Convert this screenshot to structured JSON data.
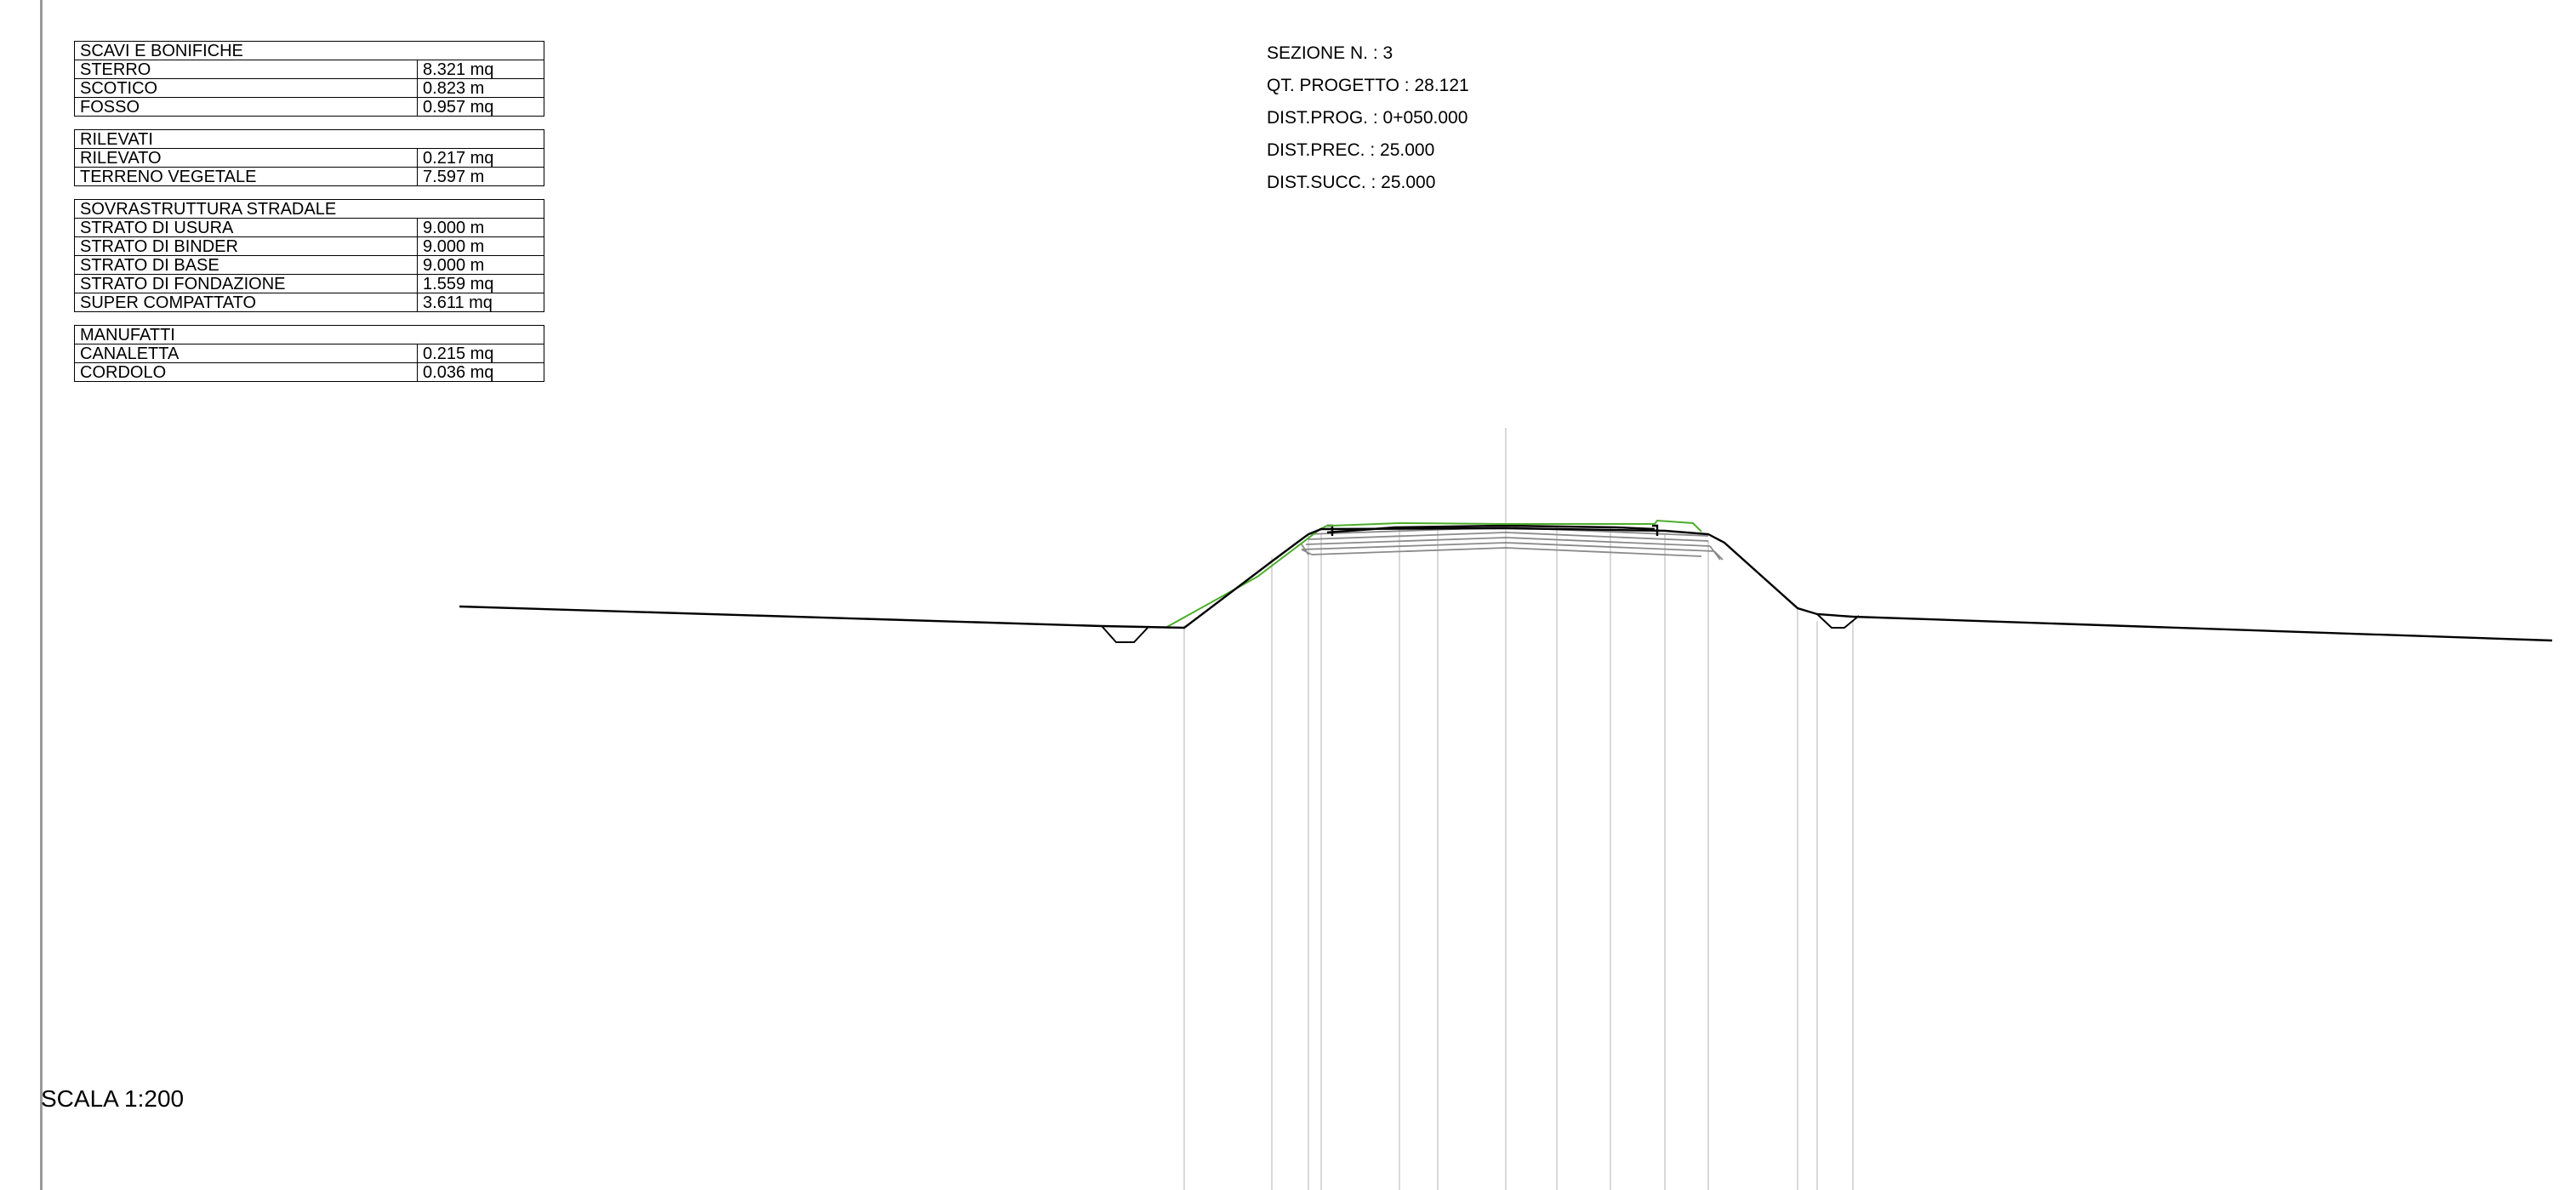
{
  "quantity_tables": {
    "scavi": {
      "title": "SCAVI E BONIFICHE",
      "rows": [
        {
          "label": "STERRO",
          "value": "8.321 mq"
        },
        {
          "label": "SCOTICO",
          "value": "0.823 m"
        },
        {
          "label": "FOSSO",
          "value": "0.957 mq"
        }
      ]
    },
    "rilevati": {
      "title": "RILEVATI",
      "rows": [
        {
          "label": "RILEVATO",
          "value": "0.217 mq"
        },
        {
          "label": "TERRENO VEGETALE",
          "value": "7.597 m"
        }
      ]
    },
    "sovrastruttura": {
      "title": "SOVRASTRUTTURA STRADALE",
      "rows": [
        {
          "label": "STRATO DI USURA",
          "value": "9.000 m"
        },
        {
          "label": "STRATO DI BINDER",
          "value": "9.000 m"
        },
        {
          "label": "STRATO DI BASE",
          "value": "9.000 m"
        },
        {
          "label": "STRATO DI FONDAZIONE",
          "value": "1.559 mq"
        },
        {
          "label": "SUPER COMPATTATO",
          "value": "3.611 mq"
        }
      ]
    },
    "manufatti": {
      "title": "MANUFATTI",
      "rows": [
        {
          "label": "CANALETTA",
          "value": "0.215 mq"
        },
        {
          "label": "CORDOLO",
          "value": "0.036 mq"
        }
      ]
    }
  },
  "section_info": {
    "sezione": "SEZIONE N. : 3",
    "qt_progetto": "QT. PROGETTO : 28.121",
    "dist_prog": "DIST.PROG. : 0+050.000",
    "dist_prec": "DIST.PREC. : 25.000",
    "dist_succ": "DIST.SUCC. : 25.000"
  },
  "scale": "SCALA 1:200",
  "colors": {
    "terrain_line": "#000000",
    "project_profile": "#4caf2a",
    "guide_lines": "#d9d9d9",
    "pavement_layers": "#8a8a8a",
    "frame_border": "#9a9a9a"
  }
}
